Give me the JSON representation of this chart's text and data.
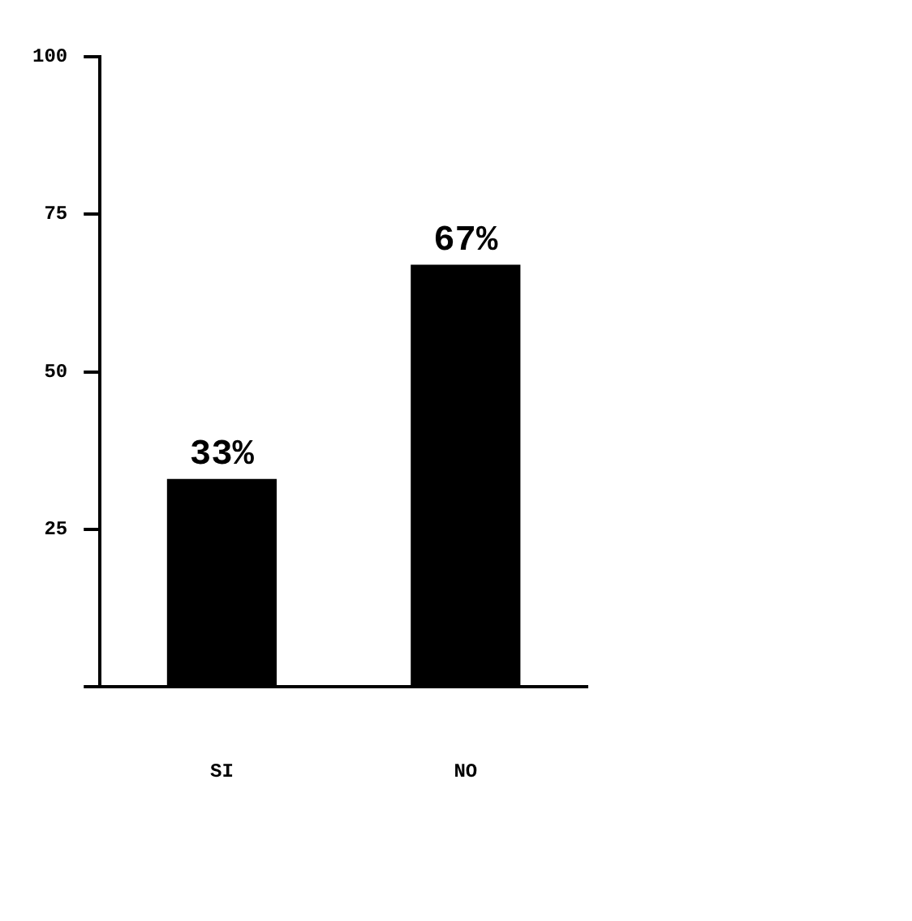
{
  "chart_data": {
    "type": "bar",
    "categories": [
      "SI",
      "NO"
    ],
    "values": [
      33,
      67
    ],
    "value_labels": [
      "33%",
      "67%"
    ],
    "color": "#000000",
    "ylim": [
      0,
      100
    ],
    "yticks": [
      {
        "value": 0,
        "label": null
      },
      25,
      50,
      75,
      100
    ],
    "grid": false,
    "legend": false
  }
}
